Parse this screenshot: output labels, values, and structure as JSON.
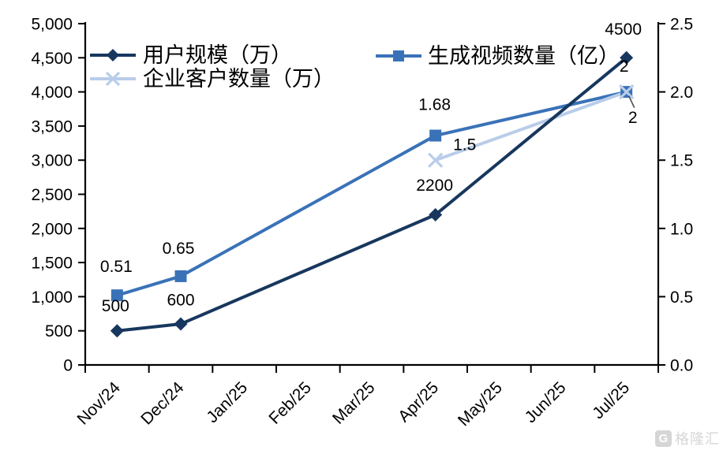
{
  "watermark": {
    "logo_letter": "G",
    "text": "格隆汇"
  },
  "chart_data": {
    "type": "line",
    "title": "",
    "xlabel": "",
    "ylabel": "",
    "grid": false,
    "background": "#ffffff",
    "axis_color": "#000000",
    "text_color": "#000000",
    "categories": [
      "Nov/24",
      "Dec/24",
      "Jan/25",
      "Feb/25",
      "Mar/25",
      "Apr/25",
      "May/25",
      "Jun/25",
      "Jul/25"
    ],
    "left_axis": {
      "min": 0,
      "max": 5000,
      "step": 500,
      "tick_labels": [
        "0",
        "500",
        "1,000",
        "1,500",
        "2,000",
        "2,500",
        "3,000",
        "3,500",
        "4,000",
        "4,500",
        "5,000"
      ]
    },
    "right_axis": {
      "min": 0,
      "max": 2.5,
      "step": 0.5,
      "tick_labels": [
        "0.0",
        "0.5",
        "1.0",
        "1.5",
        "2.0",
        "2.5"
      ]
    },
    "legend": {
      "position": "top-left",
      "entries": [
        "用户规模（万）",
        "生成视频数量（亿）",
        "企业客户数量（万）"
      ]
    },
    "series": [
      {
        "name": "用户规模（万）",
        "axis": "left",
        "marker": "diamond",
        "color": "#17375E",
        "points": [
          {
            "category": "Nov/24",
            "value": 500,
            "label": "500"
          },
          {
            "category": "Dec/24",
            "value": 600,
            "label": "600"
          },
          {
            "category": "Apr/25",
            "value": 2200,
            "label": "2200"
          },
          {
            "category": "Jul/25",
            "value": 4500,
            "label": "4500"
          }
        ]
      },
      {
        "name": "生成视频数量（亿）",
        "axis": "right",
        "marker": "square",
        "color": "#3A72B8",
        "points": [
          {
            "category": "Nov/24",
            "value": 0.51,
            "label": "0.51"
          },
          {
            "category": "Dec/24",
            "value": 0.65,
            "label": "0.65"
          },
          {
            "category": "Apr/25",
            "value": 1.68,
            "label": "1.68"
          },
          {
            "category": "Jul/25",
            "value": 2,
            "label": "2"
          }
        ]
      },
      {
        "name": "企业客户数量（万）",
        "axis": "right",
        "marker": "x",
        "color": "#B9CDE9",
        "points": [
          {
            "category": "Apr/25",
            "value": 1.5,
            "label": "1.5"
          },
          {
            "category": "Jul/25",
            "value": 2,
            "label": "2",
            "leader": true
          }
        ]
      }
    ]
  }
}
